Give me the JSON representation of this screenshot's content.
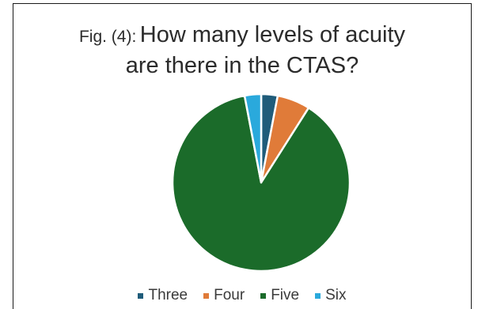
{
  "chart_data": {
    "type": "pie",
    "title_prefix": "Fig. (4):",
    "title_line1": "How many levels of acuity",
    "title_line2": "are there in the CTAS?",
    "categories": [
      "Three",
      "Four",
      "Five",
      "Six"
    ],
    "values": [
      3,
      6,
      88,
      3
    ],
    "colors": [
      "#1f5c7a",
      "#e07b39",
      "#1b6b2a",
      "#2aa9dc"
    ],
    "legend_position": "bottom"
  }
}
